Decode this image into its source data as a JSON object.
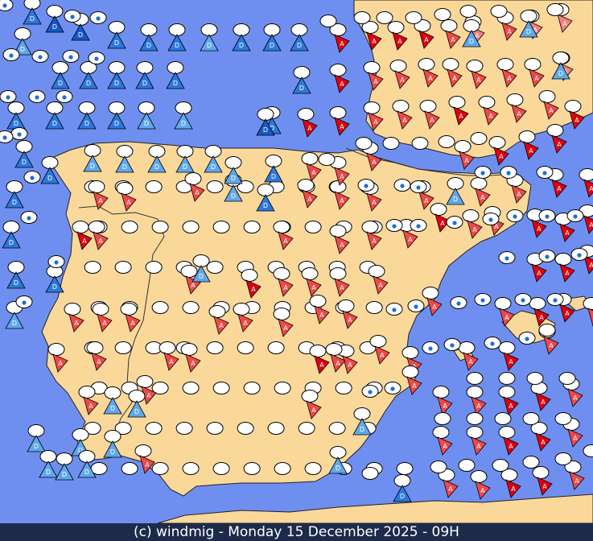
{
  "footer_text": "(c) windmig - Monday 15 December 2025 - 09H",
  "colors": {
    "sea": "#6f8ff0",
    "land": "#fad89a",
    "border": "#222222",
    "footer_bg": "#1d2a4a",
    "calm_fill": "#ffffff",
    "d_strong": "#1558c8",
    "d_mid": "#2d78dc",
    "d_light": "#5fa8ec",
    "a_strong": "#e00010",
    "a_mid": "#f04848",
    "a_light": "#f48080",
    "drop_blue": "#1f6fd0"
  },
  "legend_letters": {
    "departure": "D",
    "arrival": "A"
  }
}
